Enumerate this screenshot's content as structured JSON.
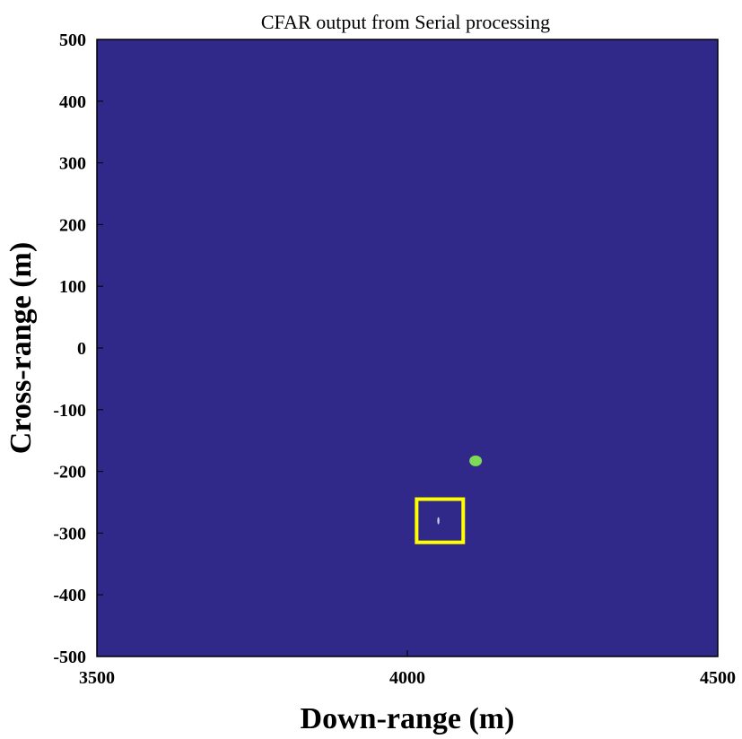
{
  "chart_data": {
    "type": "heatmap",
    "title": "CFAR output from Serial processing",
    "xlabel": "Down-range (m)",
    "ylabel": "Cross-range (m)",
    "xlim": [
      3500,
      4500
    ],
    "ylim": [
      -500,
      500
    ],
    "x_ticks": [
      3500,
      4000,
      4500
    ],
    "y_ticks": [
      500,
      400,
      300,
      200,
      100,
      0,
      -100,
      -200,
      -300,
      -400,
      -500
    ],
    "background_color": "#31298a",
    "detections": [
      {
        "x": 4110,
        "y": -183,
        "color": "#7ed957"
      },
      {
        "x": 4050,
        "y": -280,
        "color": "#c8d0e8"
      }
    ],
    "highlight_box": {
      "x_range": [
        4015,
        4090
      ],
      "y_range": [
        -315,
        -245
      ],
      "color": "#ffff00"
    },
    "grid": false,
    "legend": "none"
  }
}
